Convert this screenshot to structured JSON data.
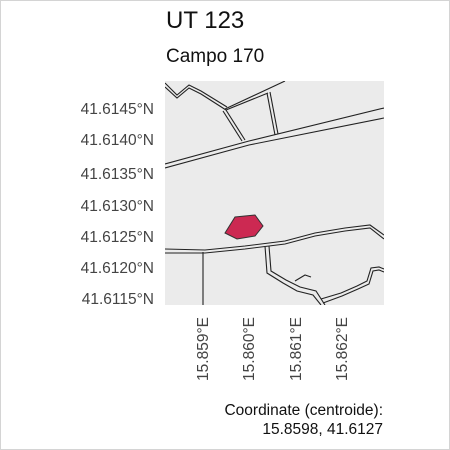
{
  "title": "UT 123",
  "subtitle": "Campo 170",
  "map": {
    "lat_labels": [
      "41.6145°N",
      "41.6140°N",
      "41.6135°N",
      "41.6130°N",
      "41.6125°N",
      "41.6120°N",
      "41.6115°N"
    ],
    "lon_labels": [
      "15.859°E",
      "15.860°E",
      "15.861°E",
      "15.862°E"
    ],
    "colors": {
      "background": "#ebebeb",
      "roads": "#222222",
      "parcel_fill": "#cc2952",
      "parcel_stroke": "#333333"
    }
  },
  "coordinates": {
    "label": "Coordinate (centroide):",
    "value": "15.8598, 41.6127"
  }
}
